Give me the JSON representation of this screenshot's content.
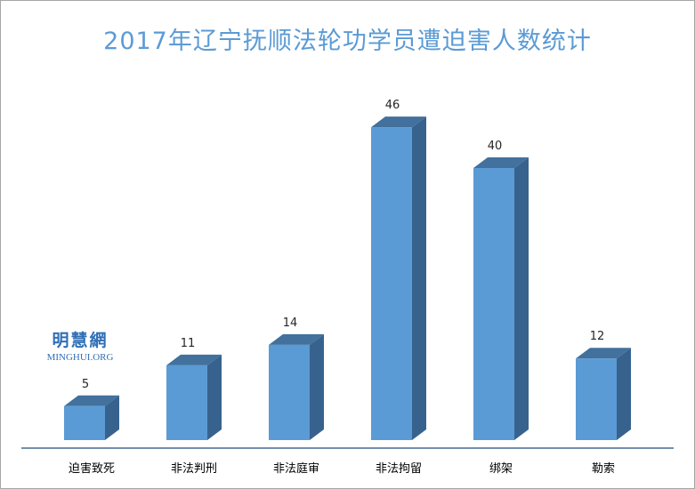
{
  "chart_data": {
    "type": "bar",
    "title": "2017年辽宁抚顺法轮功学员遭迫害人数统计",
    "categories": [
      "迫害致死",
      "非法判刑",
      "非法庭审",
      "非法拘留",
      "绑架",
      "勒索"
    ],
    "values": [
      5,
      11,
      14,
      46,
      40,
      12
    ],
    "ylim": [
      0,
      50
    ],
    "grid": false,
    "legend": "none",
    "style": "3d-column"
  },
  "watermark": {
    "cn": "明慧網",
    "en": "MINGHUI.ORG"
  },
  "colors": {
    "bar_front": "#5b9bd5",
    "bar_side": "#38628e",
    "bar_top": "#41719c",
    "title": "#5b9bd5",
    "axis": "#1f4e79",
    "watermark": "#2f6fb5"
  }
}
